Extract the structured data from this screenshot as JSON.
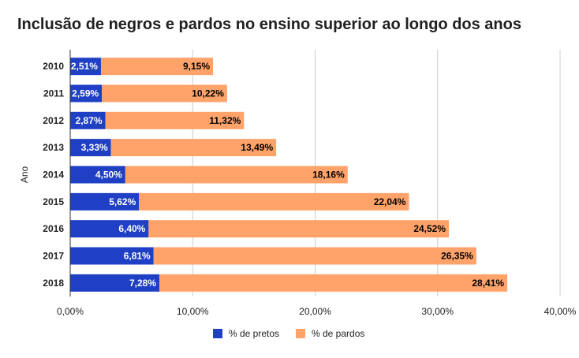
{
  "chart_data": {
    "type": "bar",
    "orientation": "horizontal",
    "stacked": true,
    "title": "Inclusão de negros e pardos no ensino superior ao longo dos anos",
    "ylabel": "Ano",
    "xlabel": "",
    "categories": [
      "2010",
      "2011",
      "2012",
      "2013",
      "2014",
      "2015",
      "2016",
      "2017",
      "2018"
    ],
    "series": [
      {
        "name": "% de pretos",
        "color": "#1f3fc4",
        "label_color": "#ffffff",
        "values": [
          2.51,
          2.59,
          2.87,
          3.33,
          4.5,
          5.62,
          6.4,
          6.81,
          7.28
        ],
        "labels": [
          "2,51%",
          "2,59%",
          "2,87%",
          "3,33%",
          "4,50%",
          "5,62%",
          "6,40%",
          "6,81%",
          "7,28%"
        ]
      },
      {
        "name": "% de pardos",
        "color": "#ffa36b",
        "label_color": "#000000",
        "values": [
          9.15,
          10.22,
          11.32,
          13.49,
          18.16,
          22.04,
          24.52,
          26.35,
          28.41
        ],
        "labels": [
          "9,15%",
          "10,22%",
          "11,32%",
          "13,49%",
          "18,16%",
          "22,04%",
          "24,52%",
          "26,35%",
          "28,41%"
        ]
      }
    ],
    "xlim": [
      0,
      40
    ],
    "xticks": [
      0,
      10,
      20,
      30,
      40
    ],
    "xtick_labels": [
      "0,00%",
      "10,00%",
      "20,00%",
      "30,00%",
      "40,00%"
    ],
    "grid": true,
    "legend_position": "bottom-center"
  }
}
